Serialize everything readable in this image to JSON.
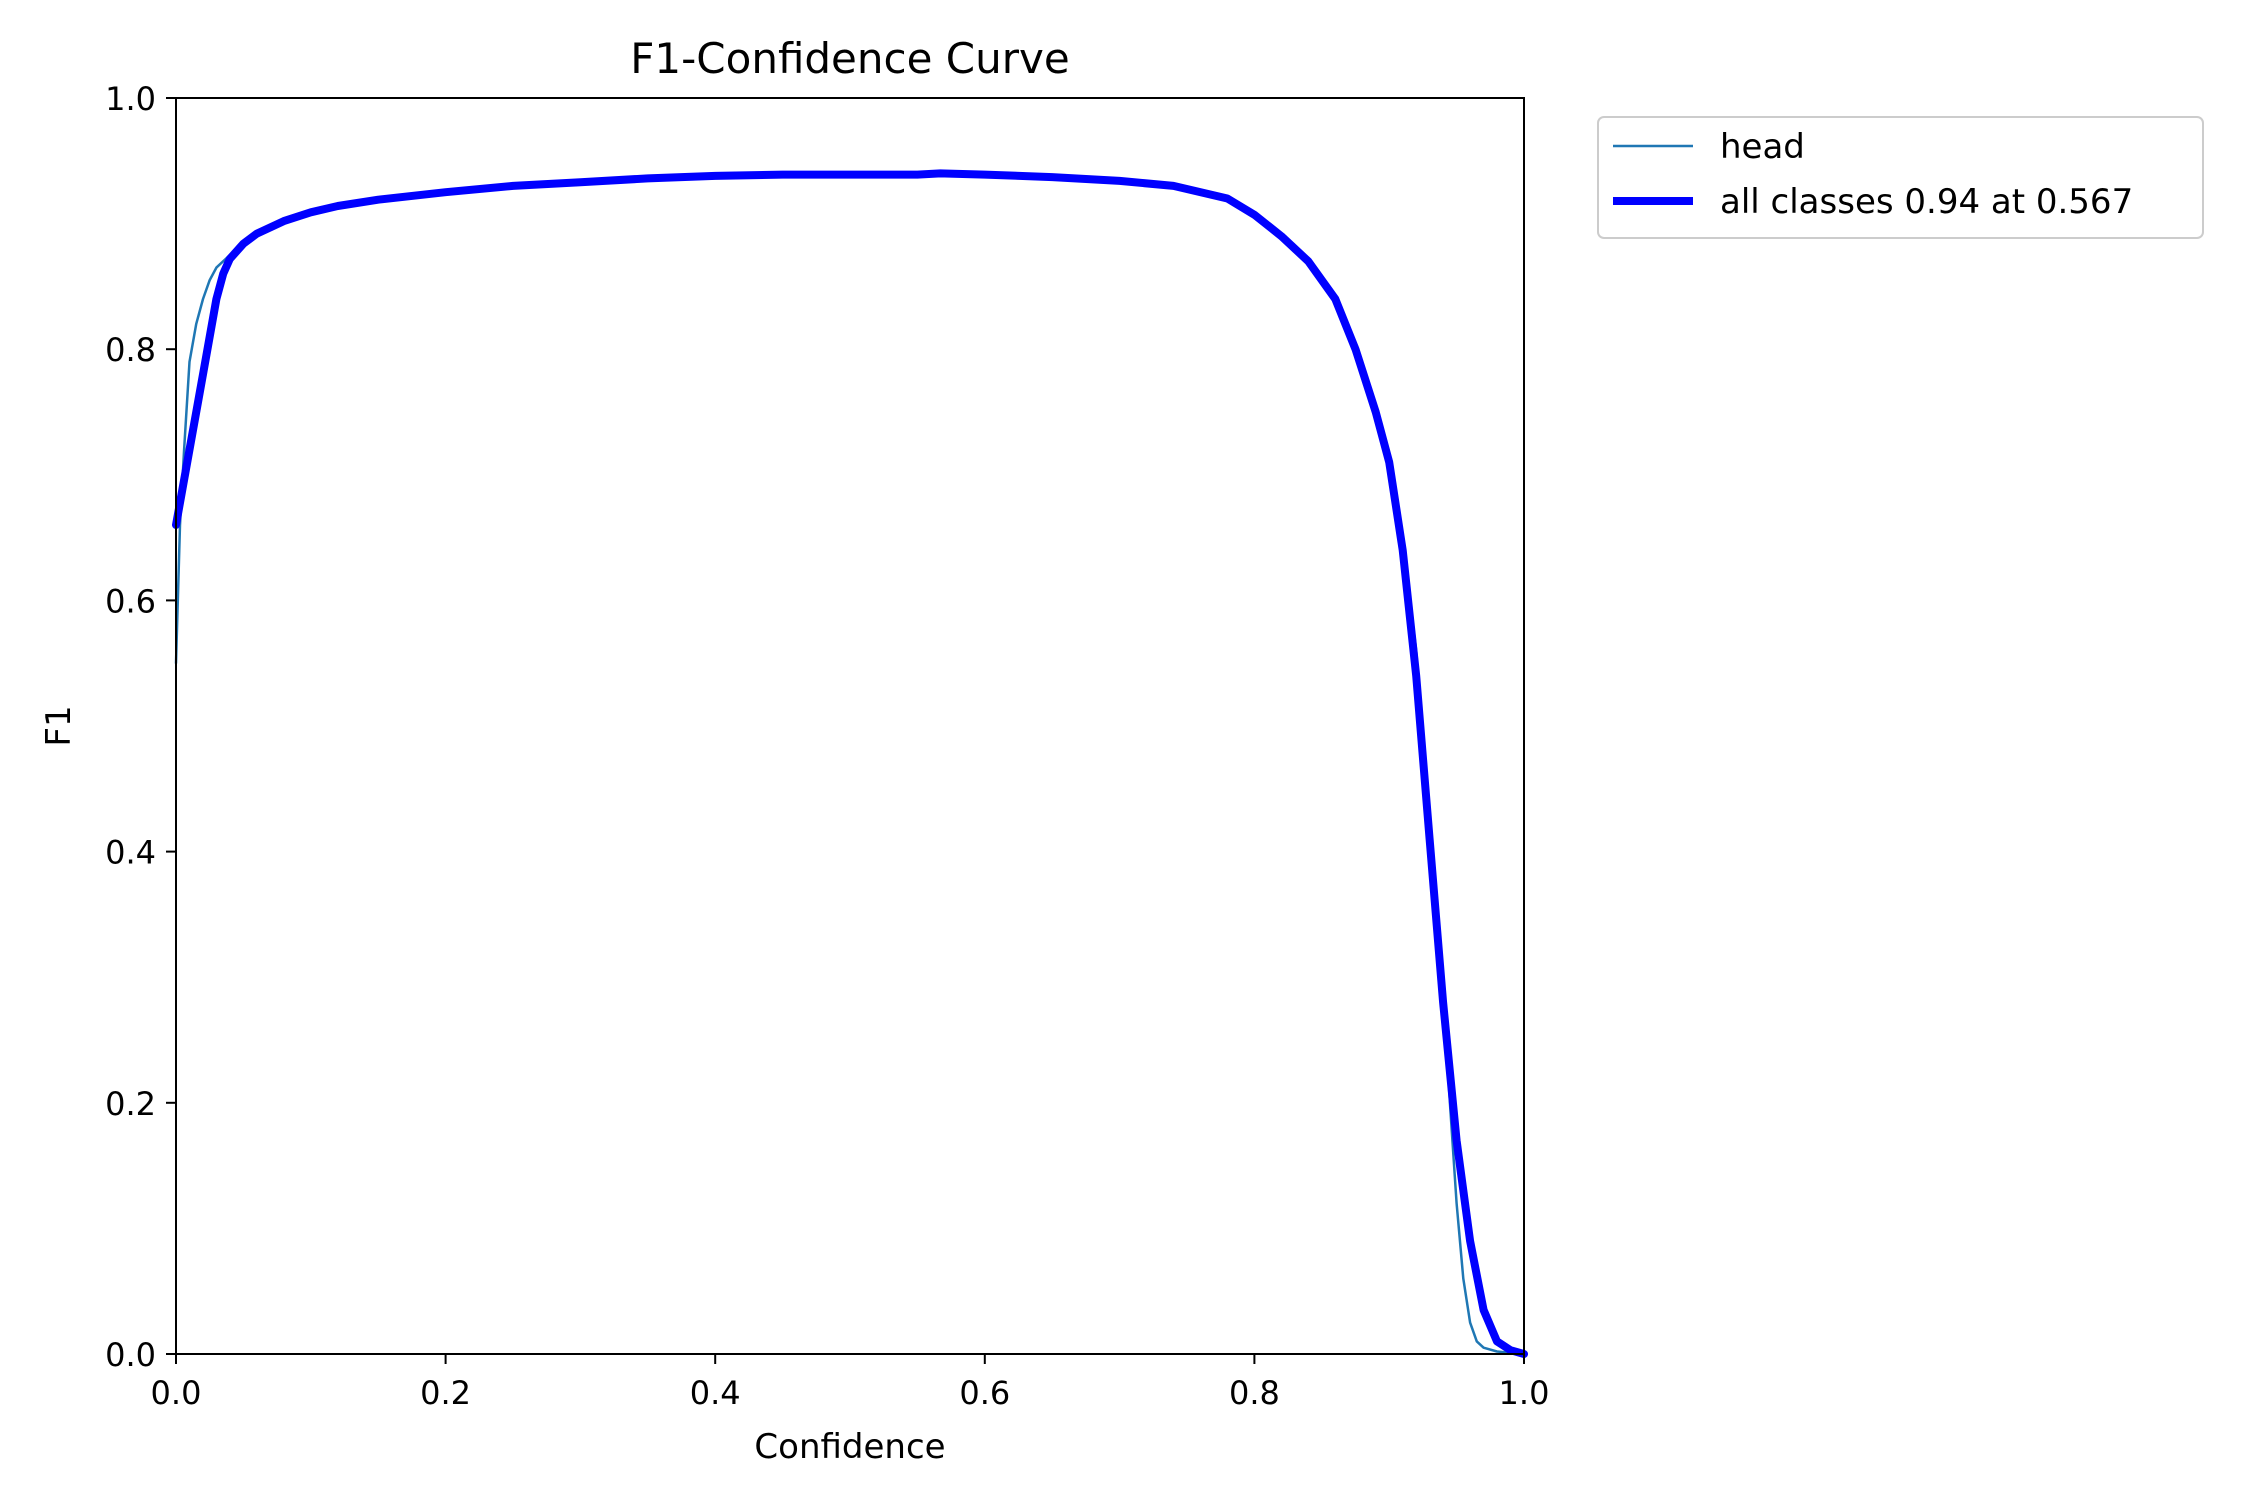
{
  "chart_data": {
    "type": "line",
    "title": "F1-Confidence Curve",
    "xlabel": "Confidence",
    "ylabel": "F1",
    "xlim": [
      0.0,
      1.0
    ],
    "ylim": [
      0.0,
      1.0
    ],
    "x_ticks": [
      "0.0",
      "0.2",
      "0.4",
      "0.6",
      "0.8",
      "1.0"
    ],
    "y_ticks": [
      "0.0",
      "0.2",
      "0.4",
      "0.6",
      "0.8",
      "1.0"
    ],
    "grid": false,
    "legend_position": "outside top-right",
    "series": [
      {
        "name": "head",
        "color": "#1f77b4",
        "style": "thin",
        "points": [
          [
            0.0,
            0.55
          ],
          [
            0.003,
            0.66
          ],
          [
            0.006,
            0.72
          ],
          [
            0.01,
            0.79
          ],
          [
            0.015,
            0.82
          ],
          [
            0.02,
            0.84
          ],
          [
            0.025,
            0.855
          ],
          [
            0.03,
            0.865
          ],
          [
            0.04,
            0.875
          ],
          [
            0.05,
            0.885
          ],
          [
            0.06,
            0.893
          ],
          [
            0.08,
            0.903
          ],
          [
            0.1,
            0.91
          ],
          [
            0.12,
            0.914
          ],
          [
            0.15,
            0.919
          ],
          [
            0.2,
            0.926
          ],
          [
            0.25,
            0.931
          ],
          [
            0.3,
            0.934
          ],
          [
            0.35,
            0.936
          ],
          [
            0.4,
            0.938
          ],
          [
            0.45,
            0.939
          ],
          [
            0.5,
            0.939
          ],
          [
            0.55,
            0.939
          ],
          [
            0.567,
            0.94
          ],
          [
            0.6,
            0.939
          ],
          [
            0.65,
            0.937
          ],
          [
            0.7,
            0.934
          ],
          [
            0.74,
            0.93
          ],
          [
            0.78,
            0.92
          ],
          [
            0.8,
            0.907
          ],
          [
            0.82,
            0.89
          ],
          [
            0.84,
            0.87
          ],
          [
            0.86,
            0.84
          ],
          [
            0.875,
            0.8
          ],
          [
            0.89,
            0.75
          ],
          [
            0.9,
            0.71
          ],
          [
            0.91,
            0.65
          ],
          [
            0.92,
            0.56
          ],
          [
            0.93,
            0.43
          ],
          [
            0.94,
            0.29
          ],
          [
            0.945,
            0.2
          ],
          [
            0.95,
            0.12
          ],
          [
            0.955,
            0.06
          ],
          [
            0.96,
            0.025
          ],
          [
            0.965,
            0.01
          ],
          [
            0.97,
            0.005
          ],
          [
            0.98,
            0.002
          ],
          [
            1.0,
            0.0
          ]
        ]
      },
      {
        "name": "all classes 0.94 at 0.567",
        "color": "#0000ff",
        "style": "thick",
        "points": [
          [
            0.0,
            0.66
          ],
          [
            0.01,
            0.72
          ],
          [
            0.02,
            0.78
          ],
          [
            0.03,
            0.84
          ],
          [
            0.035,
            0.86
          ],
          [
            0.04,
            0.872
          ],
          [
            0.05,
            0.884
          ],
          [
            0.06,
            0.892
          ],
          [
            0.08,
            0.902
          ],
          [
            0.1,
            0.909
          ],
          [
            0.12,
            0.914
          ],
          [
            0.15,
            0.919
          ],
          [
            0.2,
            0.925
          ],
          [
            0.25,
            0.93
          ],
          [
            0.3,
            0.933
          ],
          [
            0.35,
            0.936
          ],
          [
            0.4,
            0.938
          ],
          [
            0.45,
            0.939
          ],
          [
            0.5,
            0.939
          ],
          [
            0.55,
            0.939
          ],
          [
            0.567,
            0.94
          ],
          [
            0.6,
            0.939
          ],
          [
            0.65,
            0.937
          ],
          [
            0.7,
            0.934
          ],
          [
            0.74,
            0.93
          ],
          [
            0.78,
            0.92
          ],
          [
            0.8,
            0.907
          ],
          [
            0.82,
            0.89
          ],
          [
            0.84,
            0.87
          ],
          [
            0.86,
            0.84
          ],
          [
            0.875,
            0.8
          ],
          [
            0.89,
            0.75
          ],
          [
            0.9,
            0.71
          ],
          [
            0.91,
            0.64
          ],
          [
            0.92,
            0.54
          ],
          [
            0.93,
            0.41
          ],
          [
            0.94,
            0.28
          ],
          [
            0.95,
            0.17
          ],
          [
            0.96,
            0.09
          ],
          [
            0.97,
            0.035
          ],
          [
            0.98,
            0.01
          ],
          [
            0.99,
            0.003
          ],
          [
            1.0,
            0.0
          ]
        ]
      }
    ]
  }
}
